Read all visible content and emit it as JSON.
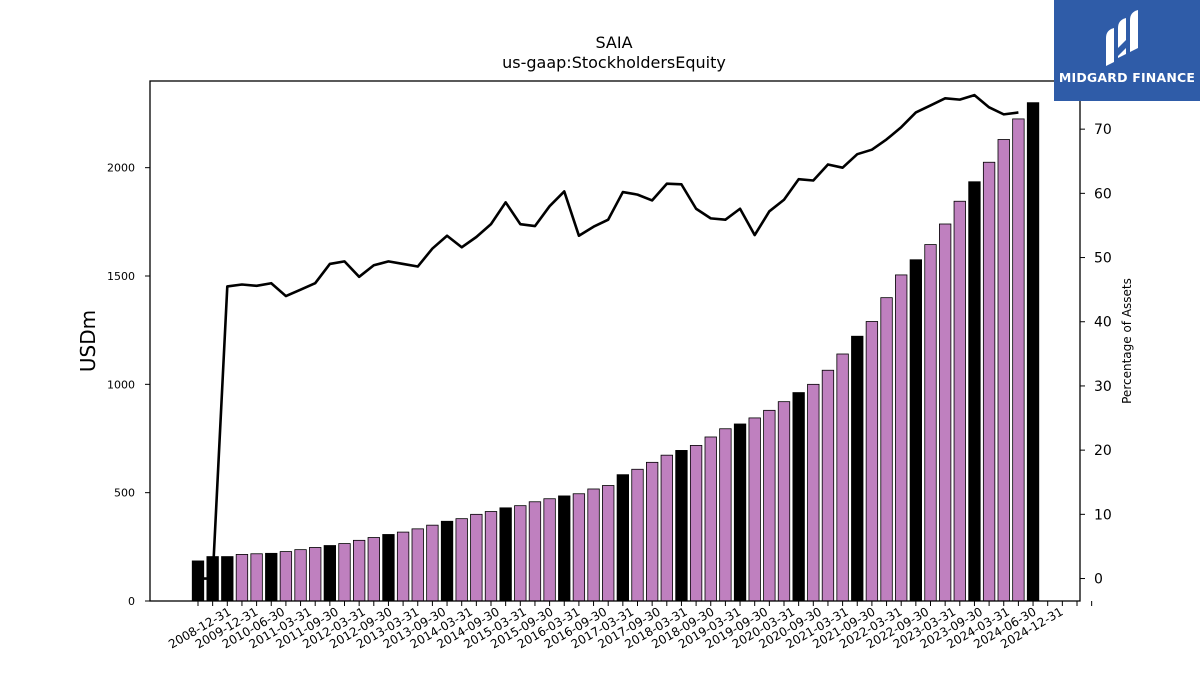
{
  "brand": {
    "name": "MIDGARD FINANCE",
    "icon": "midgard-logo-icon",
    "background": "#2f5ca8"
  },
  "chart_data": {
    "type": "bar",
    "title": "SAIA",
    "subtitle": "us-gaap:StockholdersEquity",
    "ylabel": "USDm",
    "y2label": "Percentage of Assets",
    "ylim": [
      0,
      2400
    ],
    "y2lim": [
      -3.5,
      77.5
    ],
    "yticks": [
      0,
      500,
      1000,
      1500,
      2000
    ],
    "y2ticks": [
      0,
      10,
      20,
      30,
      40,
      50,
      60,
      70
    ],
    "bar_colors": {
      "annual": "#000000",
      "quarterly": "#bf80bf"
    },
    "categories": [
      "2008-12-31",
      "2009-12-31",
      "2010-03-31",
      "2010-06-30",
      "2010-09-30",
      "2010-12-31",
      "2011-03-31",
      "2011-06-30",
      "2011-09-30",
      "2011-12-31",
      "2012-03-31",
      "2012-06-30",
      "2012-09-30",
      "2012-12-31",
      "2013-03-31",
      "2013-06-30",
      "2013-09-30",
      "2013-12-31",
      "2014-03-31",
      "2014-06-30",
      "2014-09-30",
      "2014-12-31",
      "2015-03-31",
      "2015-06-30",
      "2015-09-30",
      "2015-12-31",
      "2016-03-31",
      "2016-06-30",
      "2016-09-30",
      "2016-12-31",
      "2017-03-31",
      "2017-06-30",
      "2017-09-30",
      "2017-12-31",
      "2018-03-31",
      "2018-06-30",
      "2018-09-30",
      "2018-12-31",
      "2019-03-31",
      "2019-06-30",
      "2019-09-30",
      "2019-12-31",
      "2020-03-31",
      "2020-06-30",
      "2020-09-30",
      "2020-12-31",
      "2021-03-31",
      "2021-06-30",
      "2021-09-30",
      "2021-12-31",
      "2022-03-31",
      "2022-06-30",
      "2022-09-30",
      "2022-12-31",
      "2023-03-31",
      "2023-06-30",
      "2023-09-30",
      "2023-12-31",
      "2024-03-31",
      "2024-06-30",
      "2024-09-30",
      "2024-12-31"
    ],
    "tick_labels": [
      "2008-12-31",
      "2009-12-31",
      "2010-06-30",
      "2011-03-31",
      "2011-09-30",
      "2012-03-31",
      "2012-09-30",
      "2013-03-31",
      "2013-09-30",
      "2014-03-31",
      "2014-09-30",
      "2015-03-31",
      "2015-09-30",
      "2016-03-31",
      "2016-09-30",
      "2017-03-31",
      "2017-09-30",
      "2018-03-31",
      "2018-09-30",
      "2019-03-31",
      "2019-09-30",
      "2020-03-31",
      "2020-09-30",
      "2021-03-31",
      "2021-09-30",
      "2022-03-31",
      "2022-09-30",
      "2023-03-31",
      "2023-09-30",
      "2024-03-31",
      "2024-06-30",
      "2024-12-31"
    ],
    "series": [
      {
        "type": "bar",
        "axis": "left",
        "values": [
          185,
          205,
          205,
          215,
          218,
          220,
          228,
          237,
          247,
          256,
          265,
          280,
          293,
          307,
          318,
          333,
          350,
          368,
          380,
          400,
          413,
          430,
          440,
          458,
          472,
          485,
          495,
          517,
          533,
          583,
          608,
          640,
          673,
          695,
          718,
          757,
          795,
          817,
          845,
          880,
          920,
          962,
          1000,
          1065,
          1140,
          1222,
          1290,
          1400,
          1505,
          1575,
          1645,
          1740,
          1845,
          1935,
          2025,
          2130,
          2225,
          2300,
          null,
          null,
          null,
          null
        ],
        "annual": [
          true,
          true,
          true,
          false,
          false,
          true,
          false,
          false,
          false,
          true,
          false,
          false,
          false,
          true,
          false,
          false,
          false,
          true,
          false,
          false,
          false,
          true,
          false,
          false,
          false,
          true,
          false,
          false,
          false,
          true,
          false,
          false,
          false,
          true,
          false,
          false,
          false,
          true,
          false,
          false,
          false,
          true,
          false,
          false,
          false,
          true,
          false,
          false,
          false,
          true,
          false,
          false,
          false,
          true,
          false,
          false,
          false,
          true,
          false,
          false,
          false,
          true
        ]
      },
      {
        "type": "line",
        "axis": "right",
        "color": "#000000",
        "values": [
          0,
          0,
          45.5,
          45.8,
          45.6,
          46,
          44,
          45,
          46,
          49,
          49.4,
          47,
          48.8,
          49.4,
          49,
          48.6,
          51.4,
          53.4,
          51.6,
          53.2,
          55.2,
          58.6,
          55.2,
          54.9,
          58,
          60.3,
          53.4,
          54.8,
          55.9,
          60.2,
          59.8,
          58.9,
          61.5,
          61.4,
          57.6,
          56.1,
          55.9,
          57.6,
          53.5,
          57.2,
          59,
          62.2,
          62,
          64.5,
          64,
          66.1,
          66.8,
          68.4,
          70.3,
          72.6,
          73.7,
          74.8,
          74.6,
          75.3,
          73.4,
          72.3,
          72.6,
          null,
          null,
          null,
          null,
          null
        ]
      }
    ]
  }
}
